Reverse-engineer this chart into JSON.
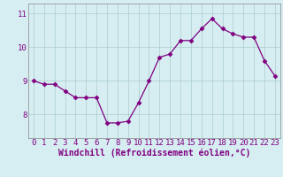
{
  "x": [
    0,
    1,
    2,
    3,
    4,
    5,
    6,
    7,
    8,
    9,
    10,
    11,
    12,
    13,
    14,
    15,
    16,
    17,
    18,
    19,
    20,
    21,
    22,
    23
  ],
  "y": [
    9.0,
    8.9,
    8.9,
    8.7,
    8.5,
    8.5,
    8.5,
    7.75,
    7.75,
    7.8,
    8.35,
    9.0,
    9.7,
    9.8,
    10.2,
    10.2,
    10.55,
    10.85,
    10.55,
    10.4,
    10.3,
    10.3,
    9.6,
    9.15
  ],
  "line_color": "#800080",
  "marker": "D",
  "marker_size": 2.5,
  "bg_color": "#d6eef2",
  "grid_color": "#aacccc",
  "tick_color": "#800080",
  "xlabel": "Windchill (Refroidissement éolien,°C)",
  "ylabel_ticks": [
    "8",
    "9",
    "10",
    "11"
  ],
  "ylim": [
    7.3,
    11.3
  ],
  "xlim": [
    -0.5,
    23.5
  ],
  "xticks": [
    0,
    1,
    2,
    3,
    4,
    5,
    6,
    7,
    8,
    9,
    10,
    11,
    12,
    13,
    14,
    15,
    16,
    17,
    18,
    19,
    20,
    21,
    22,
    23
  ],
  "yticks": [
    8,
    9,
    10,
    11
  ],
  "xlabel_fontsize": 7,
  "tick_fontsize": 6.5
}
